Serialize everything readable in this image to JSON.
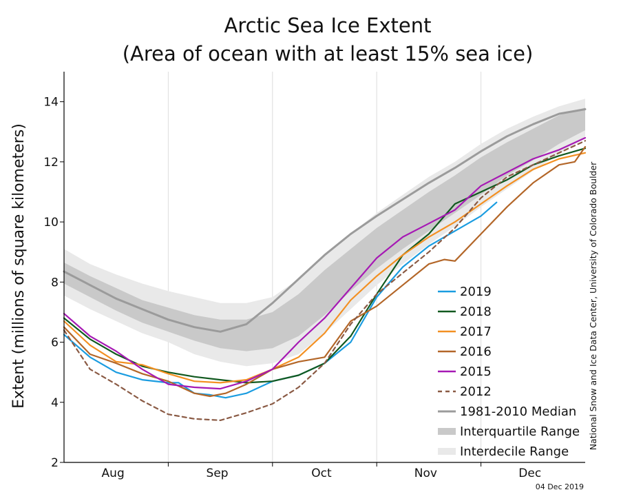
{
  "chart_data": {
    "type": "line",
    "title": "Arctic Sea Ice Extent",
    "subtitle": "(Area of ocean with at least 15% sea ice)",
    "ylabel": "Extent (millions of square kilometers)",
    "xlabel": "",
    "ylim": [
      2,
      15
    ],
    "yticks": [
      2,
      4,
      6,
      8,
      10,
      12,
      14
    ],
    "xlim": [
      0,
      5
    ],
    "xticks_months": [
      "Aug",
      "Sep",
      "Oct",
      "Nov",
      "Dec"
    ],
    "grid": "vertical month boundaries",
    "credit": "National Snow and Ice Data Center, University of Colorado Boulder",
    "date": "04 Dec 2019",
    "bands": {
      "x": [
        0,
        0.25,
        0.5,
        0.75,
        1,
        1.25,
        1.5,
        1.75,
        2,
        2.25,
        2.5,
        2.75,
        3,
        3.25,
        3.5,
        3.75,
        4,
        4.25,
        4.5,
        4.75,
        5
      ],
      "interdecile_low": [
        7.55,
        7.1,
        6.7,
        6.3,
        6.0,
        5.6,
        5.35,
        5.2,
        5.3,
        5.6,
        6.3,
        7.1,
        7.9,
        8.6,
        9.25,
        9.85,
        10.5,
        11.1,
        11.7,
        12.25,
        12.8
      ],
      "interdecile_high": [
        9.1,
        8.6,
        8.25,
        7.95,
        7.7,
        7.5,
        7.3,
        7.3,
        7.5,
        8.1,
        8.9,
        9.6,
        10.3,
        10.9,
        11.5,
        12.0,
        12.6,
        13.1,
        13.5,
        13.85,
        14.1
      ],
      "interquartile_low": [
        7.95,
        7.5,
        7.05,
        6.65,
        6.35,
        6.05,
        5.8,
        5.7,
        5.8,
        6.2,
        6.9,
        7.7,
        8.45,
        9.1,
        9.7,
        10.3,
        10.9,
        11.55,
        12.05,
        12.6,
        13.05
      ],
      "interquartile_high": [
        8.65,
        8.2,
        7.8,
        7.4,
        7.15,
        6.9,
        6.75,
        6.75,
        7.0,
        7.6,
        8.4,
        9.1,
        9.8,
        10.4,
        11.0,
        11.55,
        12.15,
        12.65,
        13.1,
        13.55,
        13.8
      ]
    },
    "series": [
      {
        "name": "2019",
        "color": "#1a9ce0",
        "dashed": false,
        "x": [
          0,
          0.25,
          0.5,
          0.75,
          1,
          1.1,
          1.25,
          1.4,
          1.55,
          1.75,
          2,
          2.25,
          2.5,
          2.75,
          3,
          3.25,
          3.5,
          3.75,
          4.0,
          4.15
        ],
        "y": [
          6.25,
          5.5,
          5.0,
          4.75,
          4.65,
          4.65,
          4.3,
          4.25,
          4.15,
          4.3,
          4.7,
          4.9,
          5.3,
          6.0,
          7.5,
          8.5,
          9.2,
          9.7,
          10.2,
          10.65
        ]
      },
      {
        "name": "2018",
        "color": "#11591f",
        "dashed": false,
        "x": [
          0,
          0.25,
          0.5,
          0.75,
          1,
          1.25,
          1.5,
          1.75,
          2,
          2.25,
          2.5,
          2.75,
          3,
          3.25,
          3.5,
          3.75,
          4.0,
          4.25,
          4.5,
          4.75,
          5
        ],
        "y": [
          6.8,
          6.1,
          5.6,
          5.2,
          5.0,
          4.85,
          4.75,
          4.65,
          4.7,
          4.9,
          5.3,
          6.2,
          7.6,
          8.9,
          9.6,
          10.6,
          11.0,
          11.4,
          11.9,
          12.2,
          12.45
        ]
      },
      {
        "name": "2017",
        "color": "#f39022",
        "dashed": false,
        "x": [
          0,
          0.25,
          0.5,
          0.75,
          1,
          1.25,
          1.5,
          1.75,
          2,
          2.25,
          2.5,
          2.75,
          3,
          3.25,
          3.5,
          3.75,
          4.0,
          4.25,
          4.5,
          4.75,
          5
        ],
        "y": [
          6.7,
          5.9,
          5.35,
          5.25,
          4.95,
          4.7,
          4.65,
          4.75,
          5.1,
          5.5,
          6.3,
          7.4,
          8.2,
          8.9,
          9.5,
          10.0,
          10.6,
          11.2,
          11.75,
          12.1,
          12.3
        ]
      },
      {
        "name": "2016",
        "color": "#b36628",
        "dashed": false,
        "x": [
          0,
          0.25,
          0.5,
          0.75,
          1,
          1.25,
          1.4,
          1.55,
          1.75,
          2,
          2.25,
          2.5,
          2.75,
          3,
          3.25,
          3.5,
          3.65,
          3.75,
          4.0,
          4.25,
          4.5,
          4.75,
          4.9,
          5
        ],
        "y": [
          6.5,
          5.6,
          5.3,
          4.95,
          4.7,
          4.3,
          4.2,
          4.3,
          4.6,
          5.1,
          5.35,
          5.5,
          6.7,
          7.2,
          7.9,
          8.6,
          8.75,
          8.7,
          9.6,
          10.5,
          11.3,
          11.9,
          12.0,
          12.5
        ]
      },
      {
        "name": "2015",
        "color": "#a619b4",
        "dashed": false,
        "x": [
          0,
          0.25,
          0.5,
          0.75,
          1,
          1.25,
          1.5,
          1.75,
          2,
          2.25,
          2.5,
          2.75,
          3,
          3.25,
          3.5,
          3.75,
          4.0,
          4.25,
          4.5,
          4.75,
          5
        ],
        "y": [
          6.95,
          6.2,
          5.7,
          5.1,
          4.6,
          4.5,
          4.45,
          4.7,
          5.1,
          6.0,
          6.8,
          7.8,
          8.8,
          9.5,
          9.95,
          10.4,
          11.2,
          11.65,
          12.1,
          12.4,
          12.8
        ]
      },
      {
        "name": "2012",
        "color": "#8a5a44",
        "dashed": true,
        "x": [
          0,
          0.25,
          0.5,
          0.75,
          1,
          1.25,
          1.5,
          1.75,
          2,
          2.25,
          2.5,
          2.75,
          3,
          3.25,
          3.5,
          3.75,
          4.0,
          4.25,
          4.5,
          4.75,
          5
        ],
        "y": [
          6.4,
          5.1,
          4.6,
          4.05,
          3.6,
          3.45,
          3.4,
          3.65,
          3.95,
          4.5,
          5.3,
          6.6,
          7.6,
          8.3,
          9.0,
          9.8,
          10.8,
          11.5,
          11.9,
          12.3,
          12.7
        ]
      },
      {
        "name": "1981-2010 Median",
        "color": "#9b9b9b",
        "dashed": false,
        "x": [
          0,
          0.25,
          0.5,
          0.75,
          1,
          1.25,
          1.5,
          1.75,
          2,
          2.25,
          2.5,
          2.75,
          3,
          3.25,
          3.5,
          3.75,
          4,
          4.25,
          4.5,
          4.75,
          5
        ],
        "y": [
          8.35,
          7.9,
          7.45,
          7.1,
          6.75,
          6.5,
          6.35,
          6.6,
          7.3,
          8.1,
          8.9,
          9.6,
          10.2,
          10.75,
          11.3,
          11.8,
          12.35,
          12.85,
          13.25,
          13.6,
          13.75
        ]
      }
    ],
    "legend": {
      "position": "bottom-right",
      "items": [
        "2019",
        "2018",
        "2017",
        "2016",
        "2015",
        "2012",
        "1981-2010 Median",
        "Interquartile Range",
        "Interdecile Range"
      ]
    },
    "colors": {
      "interdecile": "#e9e9e9",
      "interquartile": "#c9c9c9",
      "median": "#9b9b9b",
      "grid": "#dcdcdc",
      "axis": "#000000"
    }
  }
}
